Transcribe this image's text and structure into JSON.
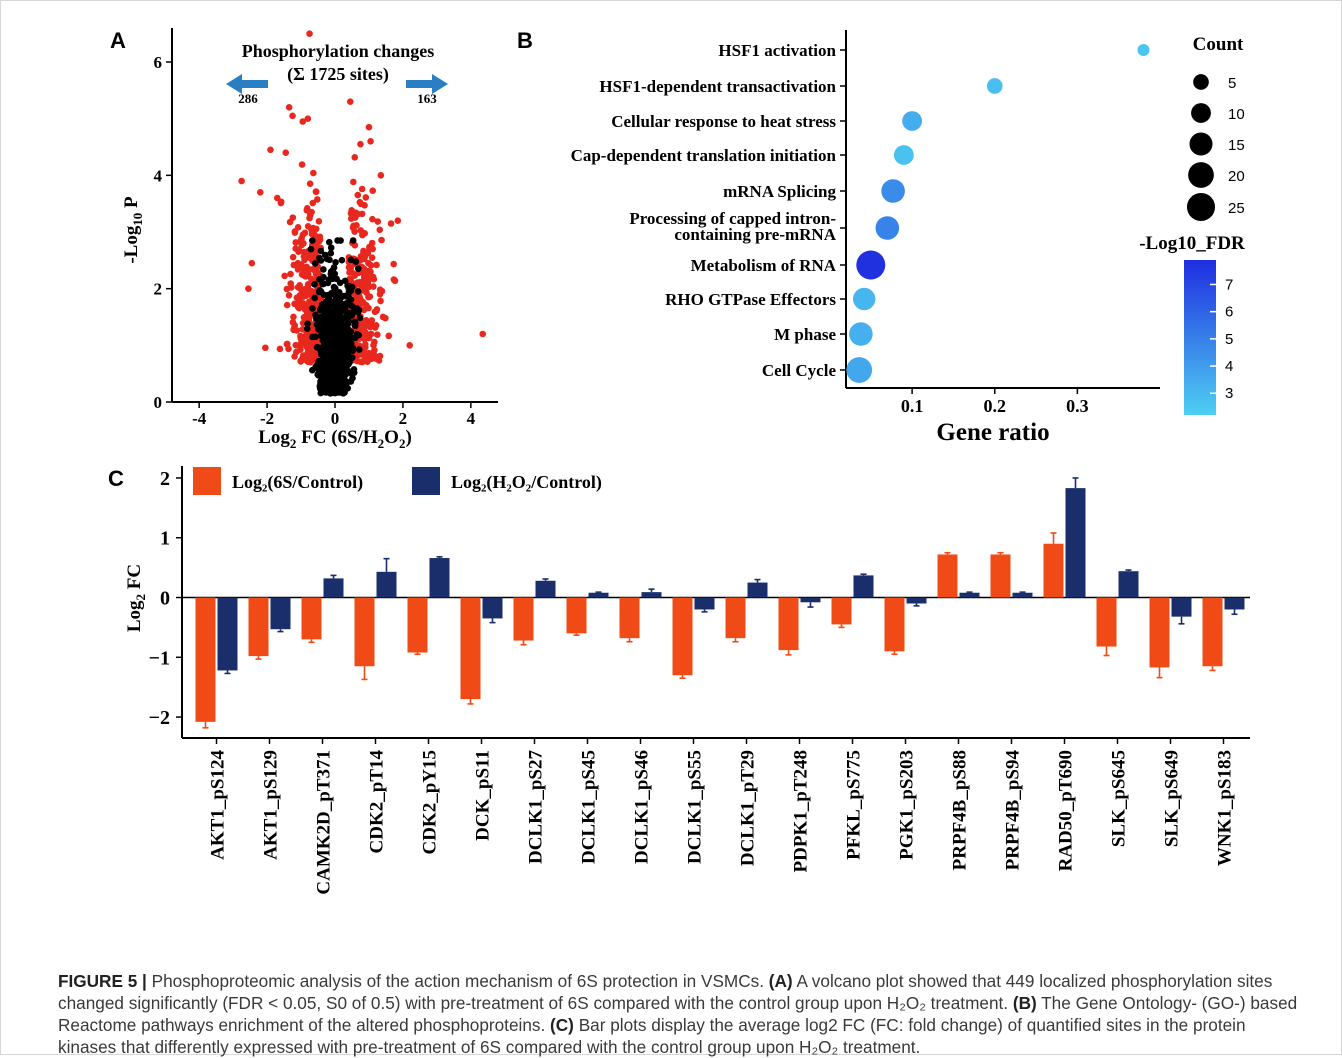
{
  "caption": {
    "figure_label": "FIGURE 5 |",
    "parts": [
      {
        "bold": false,
        "text": " Phosphoproteomic analysis of the action mechanism of 6S protection in VSMCs. "
      },
      {
        "bold": true,
        "text": "(A)"
      },
      {
        "bold": false,
        "text": " A volcano plot showed that 449 localized phosphorylation sites changed significantly (FDR < 0.05, S0 of 0.5) with pre-treatment of 6S compared with the control group upon H₂O₂ treatment. "
      },
      {
        "bold": true,
        "text": "(B)"
      },
      {
        "bold": false,
        "text": " The Gene Ontology- (GO-) based Reactome pathways enrichment of the altered phosphoproteins. "
      },
      {
        "bold": true,
        "text": "(C)"
      },
      {
        "bold": false,
        "text": " Bar plots display the average log2 FC (FC: fold change) of quantified sites in the protein kinases that differently expressed with pre-treatment of 6S compared with the control group upon H₂O₂ treatment."
      }
    ]
  },
  "chart_data": [
    {
      "panel": "A",
      "type": "scatter",
      "title": "Phosphorylation changes",
      "subtitle": "(Σ 1725 sites)",
      "xlabel_main": "Log",
      "xlabel_sub": "2",
      "xlabel_rest": " FC  (6S/H",
      "xlabel_sub2": "2",
      "xlabel_mid": "O",
      "xlabel_sub3": "2",
      "xlabel_end": ")",
      "ylabel_main": "-Log",
      "ylabel_sub": "10",
      "ylabel_end": " P",
      "xticks": [
        -4,
        -2,
        0,
        2,
        4
      ],
      "yticks": [
        0,
        2,
        4,
        6
      ],
      "xlim": [
        -4.8,
        4.8
      ],
      "ylim": [
        0,
        6.6
      ],
      "down_count": "286",
      "up_count": "163",
      "colors": {
        "significant": "#e8281e",
        "nonsignificant": "#000000",
        "arrow": "#2a7ec4"
      },
      "outlier_points": [
        {
          "x": -0.75,
          "y": 6.5
        },
        {
          "x": 0.45,
          "y": 5.3
        },
        {
          "x": -1.35,
          "y": 5.2
        },
        {
          "x": -1.25,
          "y": 5.05
        },
        {
          "x": -0.8,
          "y": 5.0
        },
        {
          "x": -0.95,
          "y": 4.95
        },
        {
          "x": 1.0,
          "y": 4.85
        },
        {
          "x": -1.9,
          "y": 4.45
        },
        {
          "x": -1.45,
          "y": 4.4
        },
        {
          "x": -2.75,
          "y": 3.9
        },
        {
          "x": -2.2,
          "y": 3.7
        },
        {
          "x": 1.65,
          "y": 3.15
        },
        {
          "x": 1.85,
          "y": 3.2
        },
        {
          "x": -2.45,
          "y": 2.45
        },
        {
          "x": -2.55,
          "y": 2.0
        },
        {
          "x": 4.35,
          "y": 1.2
        },
        {
          "x": 2.2,
          "y": 1.0
        },
        {
          "x": -1.7,
          "y": 3.6
        },
        {
          "x": 1.35,
          "y": 4.0
        },
        {
          "x": 0.75,
          "y": 4.55
        }
      ]
    },
    {
      "panel": "B",
      "type": "scatter",
      "xlabel": "Gene ratio",
      "xticks": [
        0.1,
        0.2,
        0.3
      ],
      "xlim": [
        0.02,
        0.4
      ],
      "legend_count_title": "Count",
      "legend_count_values": [
        5,
        10,
        15,
        20,
        25
      ],
      "legend_color_title": "-Log10_FDR",
      "legend_color_ticks": [
        3,
        4,
        5,
        6,
        7
      ],
      "color_range": [
        "#4fcff2",
        "#1f2ee0"
      ],
      "fdr_range": [
        2.2,
        7.9
      ],
      "pathways": [
        {
          "label": "HSF1 activation",
          "ratio": 0.38,
          "count": 2,
          "fdr": 2.6
        },
        {
          "label": "HSF1-dependent transactivation",
          "ratio": 0.2,
          "count": 5,
          "fdr": 2.8
        },
        {
          "label": "Cellular response to heat stress",
          "ratio": 0.1,
          "count": 10,
          "fdr": 3.4
        },
        {
          "label": "Cap-dependent translation initiation",
          "ratio": 0.09,
          "count": 10,
          "fdr": 2.7
        },
        {
          "label": "mRNA Splicing",
          "ratio": 0.077,
          "count": 16,
          "fdr": 4.6
        },
        {
          "label_lines": [
            "Processing of capped intron-",
            "containing pre-mRNA"
          ],
          "ratio": 0.07,
          "count": 16,
          "fdr": 4.9
        },
        {
          "label": "Metabolism of RNA",
          "ratio": 0.05,
          "count": 27,
          "fdr": 7.8
        },
        {
          "label": "RHO GTPase Effectors",
          "ratio": 0.042,
          "count": 14,
          "fdr": 3.1
        },
        {
          "label": "M phase",
          "ratio": 0.038,
          "count": 16,
          "fdr": 3.3
        },
        {
          "label": "Cell Cycle",
          "ratio": 0.036,
          "count": 20,
          "fdr": 3.6
        }
      ]
    },
    {
      "panel": "C",
      "type": "bar",
      "ylabel_main": "Log",
      "ylabel_sub": "2",
      "ylabel_end": " FC",
      "yticks": [
        -2,
        -1,
        0,
        1,
        2
      ],
      "ylim": [
        -2.35,
        2.2
      ],
      "categories": [
        "AKT1_pS124",
        "AKT1_pS129",
        "CAMK2D_pT371",
        "CDK2_pT14",
        "CDK2_pY15",
        "DCK_pS11",
        "DCLK1_pS27",
        "DCLK1_pS45",
        "DCLK1_pS46",
        "DCLK1_pS55",
        "DCLK1_pT29",
        "PDPK1_pT248",
        "PFKL_pS775",
        "PGK1_pS203",
        "PRPF4B_pS88",
        "PRPF4B_pS94",
        "RAD50_pT690",
        "SLK_pS645",
        "SLK_pS649",
        "WNK1_pS183"
      ],
      "series": [
        {
          "name": "Log₂(6S/Control)",
          "color": "#f04b16",
          "values": [
            -2.08,
            -0.98,
            -0.7,
            -1.15,
            -0.92,
            -1.7,
            -0.72,
            -0.6,
            -0.68,
            -1.3,
            -0.68,
            -0.88,
            -0.45,
            -0.9,
            0.72,
            0.72,
            0.9,
            -0.82,
            -1.17,
            -1.15
          ],
          "errors": [
            0.1,
            0.05,
            0.05,
            0.22,
            0.03,
            0.08,
            0.07,
            0.03,
            0.06,
            0.05,
            0.06,
            0.08,
            0.05,
            0.05,
            0.03,
            0.03,
            0.18,
            0.15,
            0.17,
            0.07
          ]
        },
        {
          "name": "Log₂(H₂O₂/Control)",
          "color": "#1a2e6b",
          "values": [
            -1.22,
            -0.53,
            0.32,
            0.43,
            0.66,
            -0.35,
            0.28,
            0.08,
            0.09,
            -0.2,
            0.25,
            -0.08,
            0.37,
            -0.1,
            0.08,
            0.08,
            1.83,
            0.44,
            -0.32,
            -0.2
          ],
          "errors": [
            0.05,
            0.04,
            0.05,
            0.22,
            0.02,
            0.07,
            0.03,
            0.01,
            0.05,
            0.04,
            0.05,
            0.08,
            0.02,
            0.04,
            0.01,
            0.01,
            0.17,
            0.02,
            0.12,
            0.08
          ]
        }
      ]
    }
  ]
}
